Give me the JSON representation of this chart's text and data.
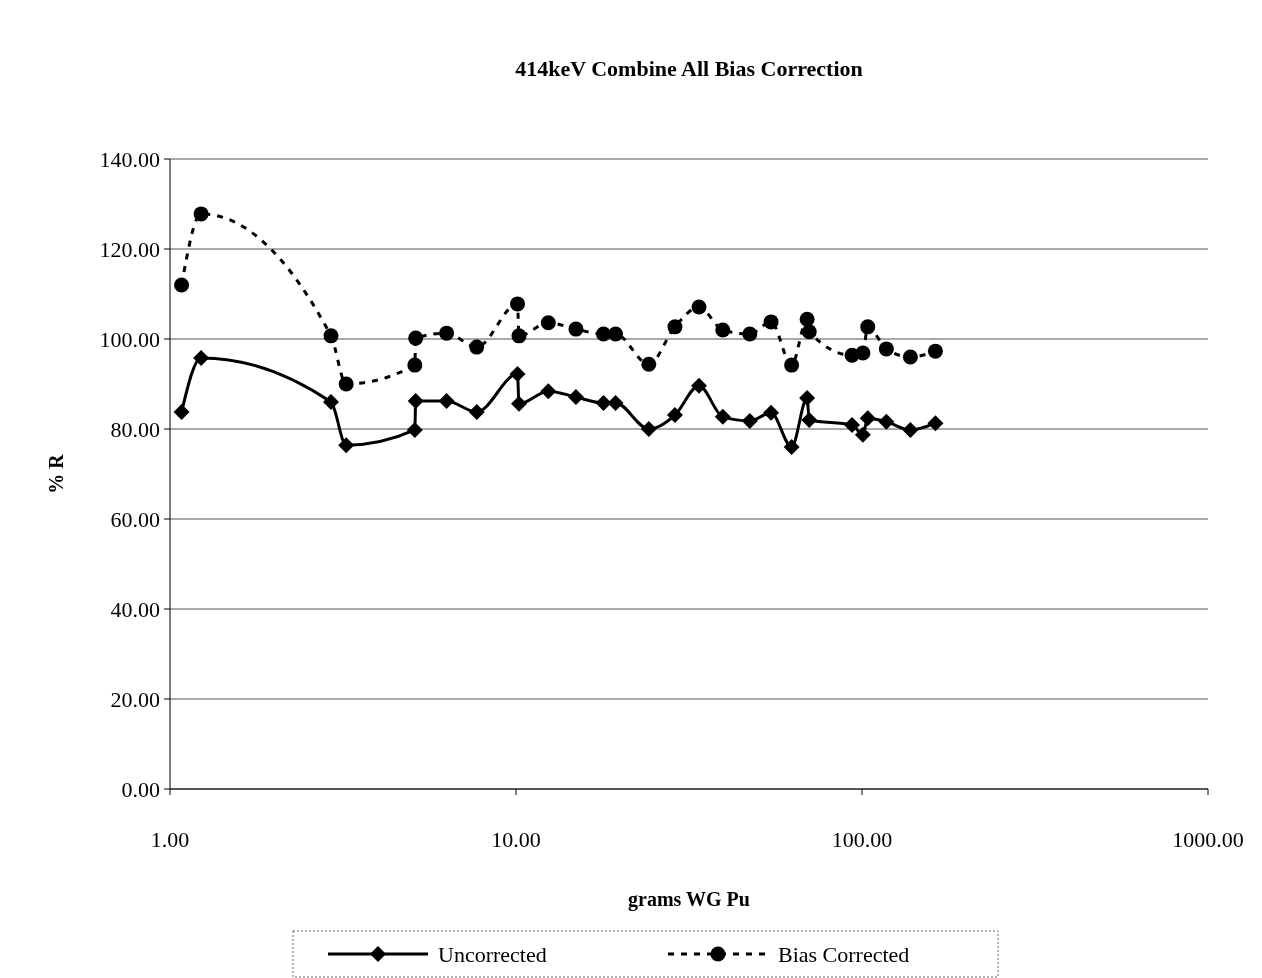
{
  "chart_data": {
    "type": "line",
    "title": "414keV Combine All Bias Correction",
    "xlabel": "grams WG Pu",
    "ylabel": "% R",
    "log": "x",
    "x": [
      1.08,
      1.23,
      2.92,
      3.23,
      5.1,
      5.13,
      6.3,
      7.7,
      10.1,
      10.2,
      12.4,
      14.9,
      17.9,
      19.4,
      24.2,
      28.8,
      33.8,
      39.6,
      47.4,
      54.6,
      62.6,
      69.4,
      70.4,
      93.6,
      100.6,
      103.9,
      117.6,
      138,
      163
    ],
    "xlim": [
      1,
      1000
    ],
    "xticks": [
      {
        "value": 1,
        "label": "1.00"
      },
      {
        "value": 10,
        "label": "10.00"
      },
      {
        "value": 100,
        "label": "100.00"
      },
      {
        "value": 1000,
        "label": "1000.00"
      }
    ],
    "ylim": [
      0,
      140
    ],
    "yticks": [
      {
        "value": 0,
        "label": "0.00"
      },
      {
        "value": 20,
        "label": "20.00"
      },
      {
        "value": 40,
        "label": "40.00"
      },
      {
        "value": 60,
        "label": "60.00"
      },
      {
        "value": 80,
        "label": "80.00"
      },
      {
        "value": 100,
        "label": "100.00"
      },
      {
        "value": 120,
        "label": "120.00"
      },
      {
        "value": 140,
        "label": "140.00"
      }
    ],
    "grid": "y",
    "legend": "bottom",
    "series": [
      {
        "name": "Uncorrected",
        "color": "#000000",
        "marker": "diamond",
        "line_style": "solid",
        "values": [
          83.8,
          95.8,
          86,
          76.4,
          79.8,
          86.2,
          86.2,
          83.8,
          92.2,
          85.6,
          88.4,
          87.1,
          85.8,
          85.8,
          80,
          83.1,
          89.6,
          82.7,
          81.8,
          83.6,
          76,
          86.9,
          82,
          80.9,
          78.7,
          82.4,
          81.6,
          79.8,
          81.3
        ]
      },
      {
        "name": "Bias Corrected",
        "color": "#000000",
        "marker": "circle",
        "line_style": "dashed",
        "values": [
          112,
          127.8,
          100.7,
          90,
          94.2,
          100.2,
          101.3,
          98.2,
          107.8,
          100.7,
          103.6,
          102.2,
          101.1,
          101.1,
          94.4,
          102.7,
          107.1,
          102,
          101.1,
          103.8,
          94.2,
          104.4,
          101.6,
          96.4,
          96.9,
          102.7,
          97.8,
          96,
          97.3
        ]
      }
    ]
  }
}
